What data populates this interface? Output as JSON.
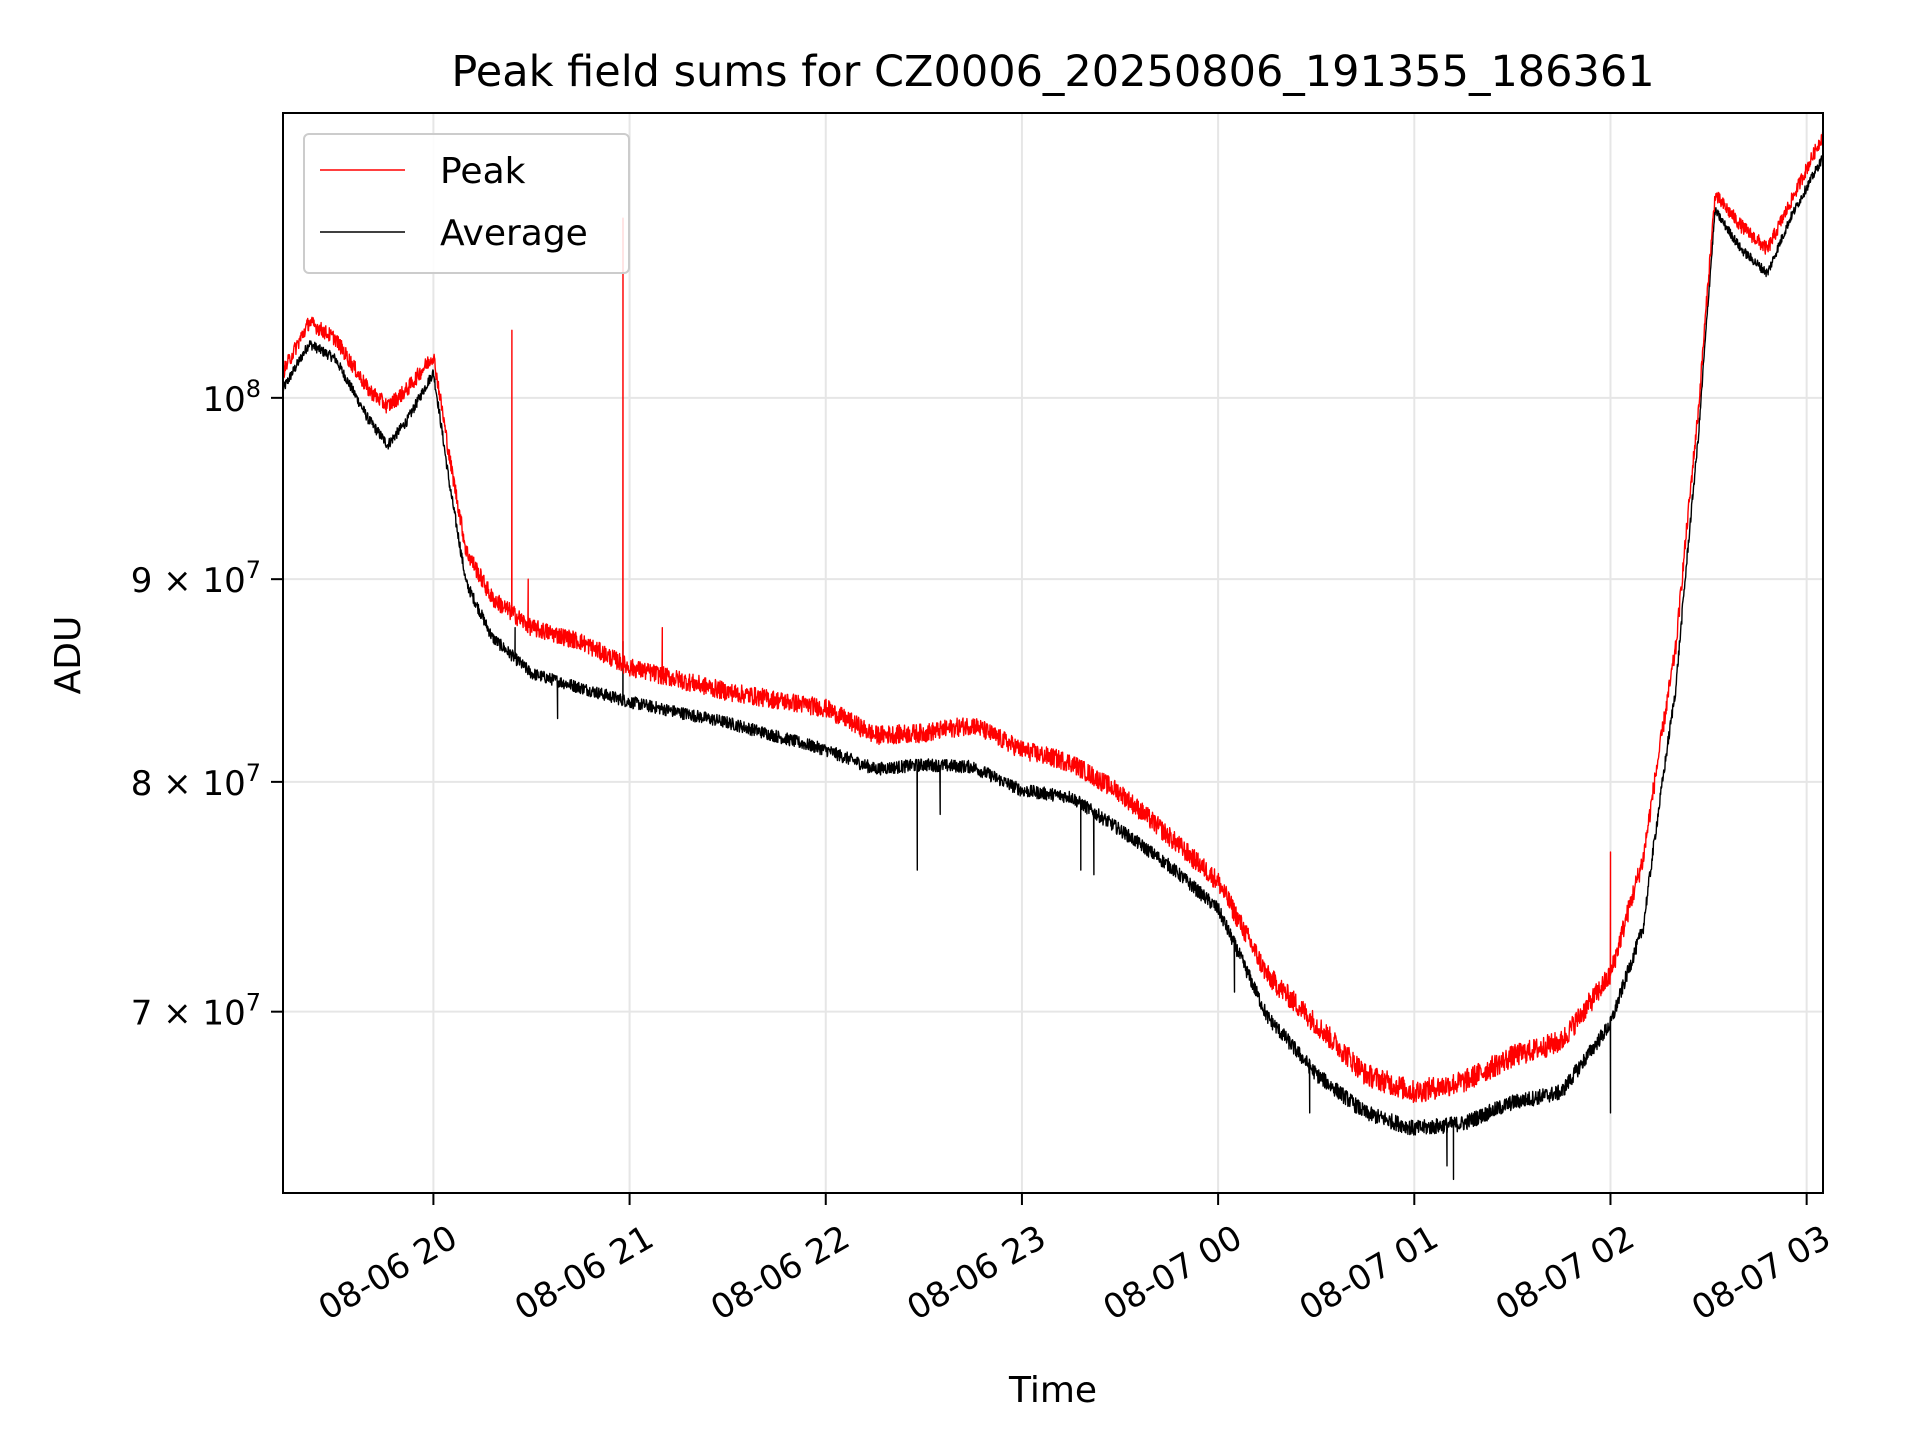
{
  "chart_data": {
    "type": "line",
    "title": "Peak field sums for CZ0006_20250806_191355_186361",
    "xlabel": "Time",
    "ylabel": "ADU",
    "y_scale": "log",
    "grid": true,
    "legend_position": "top-left",
    "xlim": [
      "2025-08-06 19:14",
      "2025-08-07 03:05"
    ],
    "ylim": [
      63000000,
      118000000
    ],
    "x_ticks": [
      {
        "value": "2025-08-06 20:00",
        "label": "08-06 20"
      },
      {
        "value": "2025-08-06 21:00",
        "label": "08-06 21"
      },
      {
        "value": "2025-08-06 22:00",
        "label": "08-06 22"
      },
      {
        "value": "2025-08-06 23:00",
        "label": "08-06 23"
      },
      {
        "value": "2025-08-07 00:00",
        "label": "08-07 00"
      },
      {
        "value": "2025-08-07 01:00",
        "label": "08-07 01"
      },
      {
        "value": "2025-08-07 02:00",
        "label": "08-07 02"
      },
      {
        "value": "2025-08-07 03:00",
        "label": "08-07 03"
      }
    ],
    "y_ticks": [
      {
        "value": 100000000,
        "base": "10",
        "exp": "8"
      },
      {
        "value": 90000000,
        "base": "9 × 10",
        "exp": "7"
      },
      {
        "value": 80000000,
        "base": "8 × 10",
        "exp": "7"
      },
      {
        "value": 70000000,
        "base": "7 × 10",
        "exp": "7"
      }
    ],
    "series": [
      {
        "name": "Peak",
        "color": "#ff0000",
        "noise": 450000,
        "points": [
          [
            "2025-08-06 19:14",
            101500000
          ],
          [
            "2025-08-06 19:22",
            104500000
          ],
          [
            "2025-08-06 19:30",
            103500000
          ],
          [
            "2025-08-06 19:40",
            100500000
          ],
          [
            "2025-08-06 19:46",
            99500000
          ],
          [
            "2025-08-06 19:52",
            100500000
          ],
          [
            "2025-08-06 20:00",
            102500000
          ],
          [
            "2025-08-06 20:05",
            96500000
          ],
          [
            "2025-08-06 20:10",
            91500000
          ],
          [
            "2025-08-06 20:18",
            89000000
          ],
          [
            "2025-08-06 20:30",
            87500000
          ],
          [
            "2025-08-06 20:45",
            86800000
          ],
          [
            "2025-08-06 21:00",
            85500000
          ],
          [
            "2025-08-06 21:30",
            84300000
          ],
          [
            "2025-08-06 22:00",
            83500000
          ],
          [
            "2025-08-06 22:15",
            82200000
          ],
          [
            "2025-08-06 22:30",
            82300000
          ],
          [
            "2025-08-06 22:45",
            82700000
          ],
          [
            "2025-08-06 23:00",
            81500000
          ],
          [
            "2025-08-06 23:15",
            80900000
          ],
          [
            "2025-08-06 23:30",
            79500000
          ],
          [
            "2025-08-06 23:45",
            77500000
          ],
          [
            "2025-08-07 00:00",
            75500000
          ],
          [
            "2025-08-07 00:15",
            71500000
          ],
          [
            "2025-08-07 00:30",
            69500000
          ],
          [
            "2025-08-07 00:45",
            67500000
          ],
          [
            "2025-08-07 01:00",
            66800000
          ],
          [
            "2025-08-07 01:15",
            67200000
          ],
          [
            "2025-08-07 01:30",
            68200000
          ],
          [
            "2025-08-07 01:45",
            68800000
          ],
          [
            "2025-08-07 02:00",
            71500000
          ],
          [
            "2025-08-07 02:10",
            76500000
          ],
          [
            "2025-08-07 02:20",
            86500000
          ],
          [
            "2025-08-07 02:27",
            99500000
          ],
          [
            "2025-08-07 02:32",
            112500000
          ],
          [
            "2025-08-07 02:40",
            110500000
          ],
          [
            "2025-08-07 02:48",
            109000000
          ],
          [
            "2025-08-07 02:55",
            112000000
          ],
          [
            "2025-08-07 03:05",
            116500000
          ]
        ],
        "spikes": [
          [
            "2025-08-06 20:24",
            104000000
          ],
          [
            "2025-08-06 20:29",
            90000000
          ],
          [
            "2025-08-06 20:58",
            111000000
          ],
          [
            "2025-08-06 21:10",
            87500000
          ],
          [
            "2025-08-07 02:00",
            76800000
          ]
        ]
      },
      {
        "name": "Average",
        "color": "#000000",
        "noise": 300000,
        "points": [
          [
            "2025-08-06 19:14",
            100500000
          ],
          [
            "2025-08-06 19:22",
            103200000
          ],
          [
            "2025-08-06 19:30",
            102300000
          ],
          [
            "2025-08-06 19:40",
            98800000
          ],
          [
            "2025-08-06 19:46",
            97300000
          ],
          [
            "2025-08-06 19:52",
            98700000
          ],
          [
            "2025-08-06 20:00",
            101500000
          ],
          [
            "2025-08-06 20:05",
            95000000
          ],
          [
            "2025-08-06 20:10",
            89800000
          ],
          [
            "2025-08-06 20:18",
            87000000
          ],
          [
            "2025-08-06 20:30",
            85200000
          ],
          [
            "2025-08-06 20:45",
            84500000
          ],
          [
            "2025-08-06 21:00",
            83800000
          ],
          [
            "2025-08-06 21:30",
            82800000
          ],
          [
            "2025-08-06 22:00",
            81500000
          ],
          [
            "2025-08-06 22:15",
            80600000
          ],
          [
            "2025-08-06 22:30",
            80800000
          ],
          [
            "2025-08-06 22:45",
            80700000
          ],
          [
            "2025-08-06 23:00",
            79600000
          ],
          [
            "2025-08-06 23:15",
            79300000
          ],
          [
            "2025-08-06 23:30",
            77800000
          ],
          [
            "2025-08-06 23:45",
            76200000
          ],
          [
            "2025-08-07 00:00",
            74300000
          ],
          [
            "2025-08-07 00:15",
            69800000
          ],
          [
            "2025-08-07 00:30",
            67500000
          ],
          [
            "2025-08-07 00:45",
            66000000
          ],
          [
            "2025-08-07 01:00",
            65400000
          ],
          [
            "2025-08-07 01:15",
            65600000
          ],
          [
            "2025-08-07 01:30",
            66400000
          ],
          [
            "2025-08-07 01:45",
            66800000
          ],
          [
            "2025-08-07 02:00",
            69500000
          ],
          [
            "2025-08-07 02:10",
            73500000
          ],
          [
            "2025-08-07 02:20",
            84500000
          ],
          [
            "2025-08-07 02:27",
            98000000
          ],
          [
            "2025-08-07 02:32",
            111500000
          ],
          [
            "2025-08-07 02:40",
            109000000
          ],
          [
            "2025-08-07 02:48",
            107500000
          ],
          [
            "2025-08-07 02:55",
            111000000
          ],
          [
            "2025-08-07 03:05",
            115000000
          ]
        ],
        "spikes": [
          [
            "2025-08-06 20:25",
            87500000
          ],
          [
            "2025-08-06 20:38",
            83000000
          ],
          [
            "2025-08-06 20:58",
            86800000
          ],
          [
            "2025-08-06 22:28",
            76000000
          ],
          [
            "2025-08-06 22:35",
            78500000
          ],
          [
            "2025-08-06 23:18",
            76000000
          ],
          [
            "2025-08-06 23:22",
            75800000
          ],
          [
            "2025-08-07 00:05",
            70800000
          ],
          [
            "2025-08-07 00:28",
            66000000
          ],
          [
            "2025-08-07 01:10",
            64000000
          ],
          [
            "2025-08-07 01:12",
            63500000
          ],
          [
            "2025-08-07 02:00",
            66000000
          ]
        ]
      }
    ]
  }
}
